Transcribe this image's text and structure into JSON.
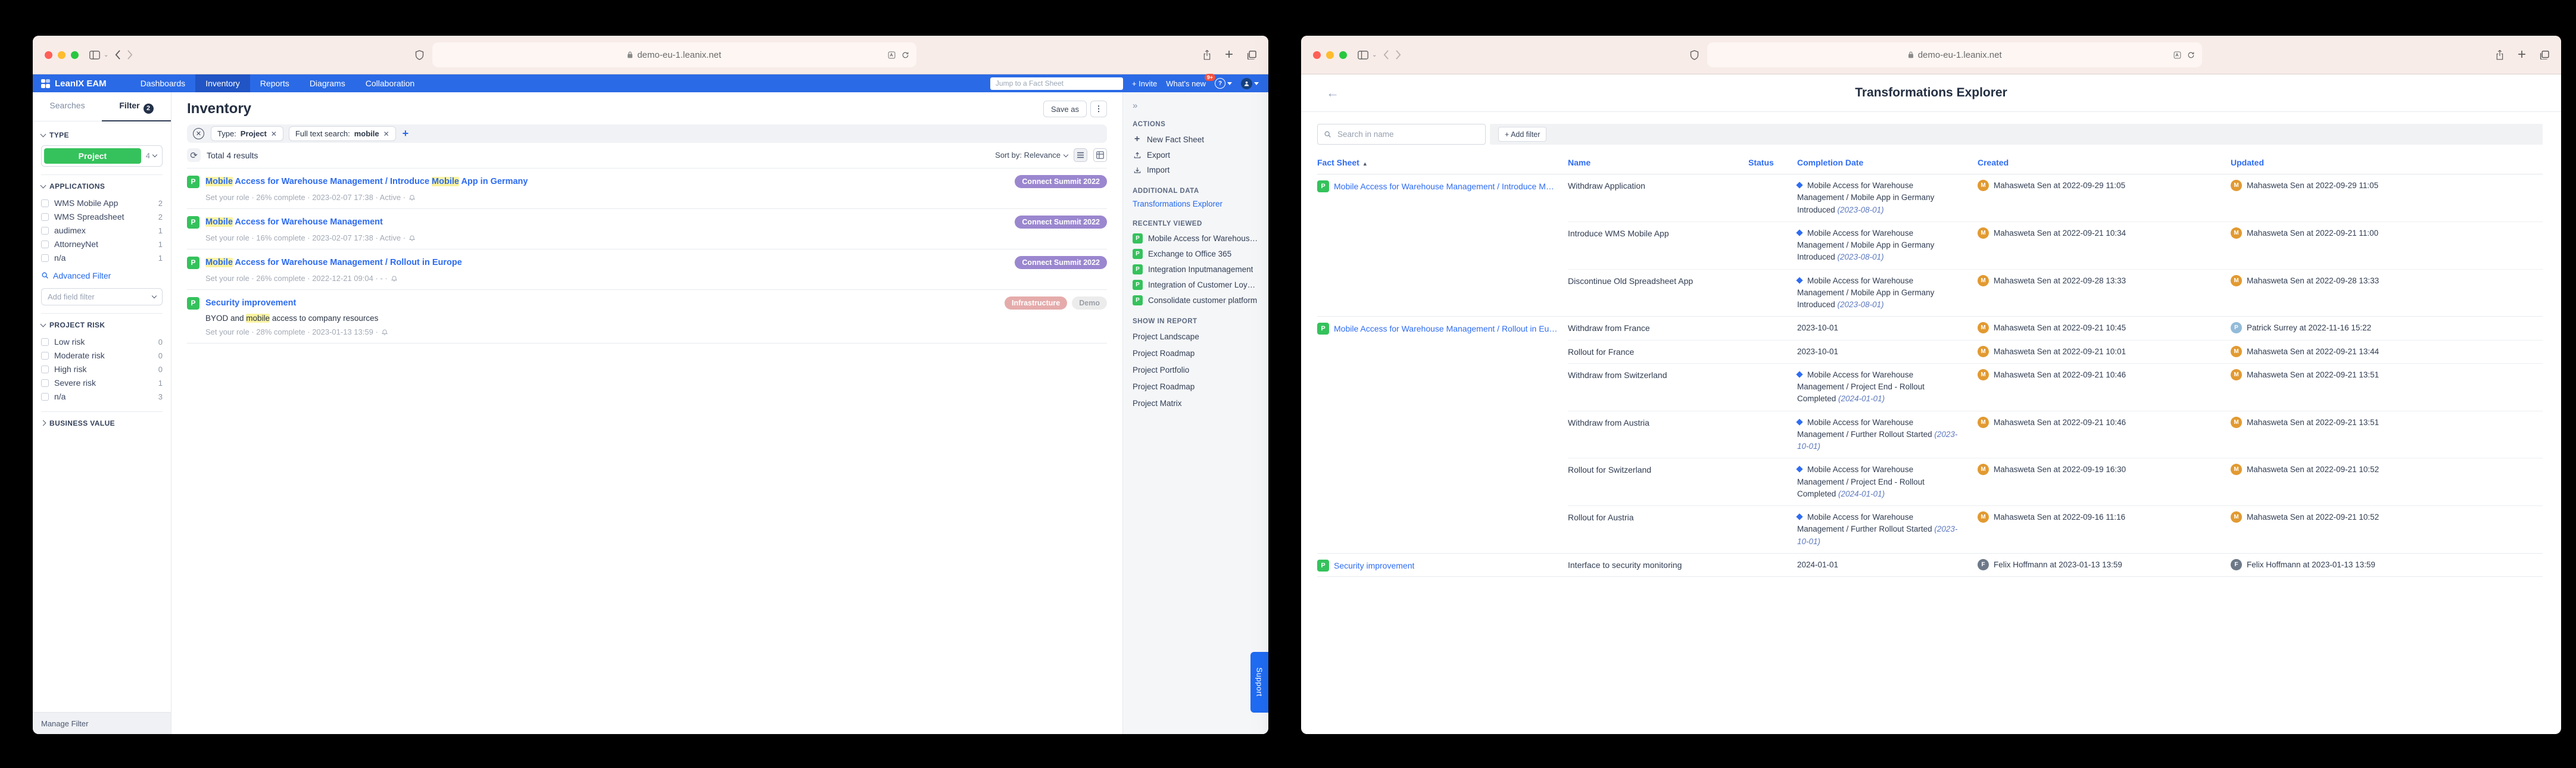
{
  "browser": {
    "url": "demo-eu-1.leanix.net"
  },
  "fact_sheet_badge": "P",
  "colors": {
    "navbar_blue": "#2b6ae6",
    "accent_blue": "#2e6cf3",
    "green": "#35c25c",
    "highlight_yellow": "#faf3a2",
    "tag_purple": "#9b87cf",
    "tag_pink": "#e5abab",
    "tag_gray": "#ececec"
  },
  "left": {
    "navbar": {
      "brand": "LeanIX EAM",
      "items": [
        {
          "label": "Dashboards",
          "active": false
        },
        {
          "label": "Inventory",
          "active": true
        },
        {
          "label": "Reports",
          "active": false
        },
        {
          "label": "Diagrams",
          "active": false
        },
        {
          "label": "Collaboration",
          "active": false
        }
      ],
      "search_placeholder": "Jump to a Fact Sheet",
      "invite": "+ Invite",
      "whats_new": "What's new",
      "whats_new_badge": "9+"
    },
    "sidebar": {
      "tabs": [
        {
          "label": "Searches",
          "badge": "",
          "active": false
        },
        {
          "label": "Filter",
          "badge": "2",
          "active": true
        }
      ],
      "type_section": {
        "title": "TYPE",
        "value": "Project",
        "count": "4"
      },
      "applications": {
        "title": "APPLICATIONS",
        "items": [
          {
            "label": "WMS Mobile App",
            "count": "2"
          },
          {
            "label": "WMS Spreadsheet",
            "count": "2"
          },
          {
            "label": "audimex",
            "count": "1"
          },
          {
            "label": "AttorneyNet",
            "count": "1"
          },
          {
            "label": "n/a",
            "count": "1"
          }
        ]
      },
      "advanced_filter": "Advanced Filter",
      "add_field_filter": "Add field filter",
      "project_risk": {
        "title": "PROJECT RISK",
        "items": [
          {
            "label": "Low risk",
            "count": "0"
          },
          {
            "label": "Moderate risk",
            "count": "0"
          },
          {
            "label": "High risk",
            "count": "0"
          },
          {
            "label": "Severe risk",
            "count": "1"
          },
          {
            "label": "n/a",
            "count": "3"
          }
        ]
      },
      "business_value": "BUSINESS VALUE",
      "footer": "Manage Filter"
    },
    "main": {
      "title": "Inventory",
      "save_as": "Save as",
      "filter_pills": [
        {
          "label": "Type:",
          "value": "Project"
        },
        {
          "label": "Full text search:",
          "value": "mobile"
        }
      ],
      "total": "Total 4 results",
      "sort": "Sort by: Relevance",
      "items": [
        {
          "title": [
            [
              "Mobile",
              1
            ],
            [
              " Access for Warehouse Management / Introduce ",
              0
            ],
            [
              "Mobile",
              1
            ],
            [
              " App in Germany",
              0
            ]
          ],
          "tags": [
            {
              "label": "Connect Summit 2022",
              "color": "purple"
            }
          ],
          "meta": "Set your role · 26% complete · 2023-02-07 17:38 · Active ·"
        },
        {
          "title": [
            [
              "Mobile",
              1
            ],
            [
              " Access for Warehouse Management",
              0
            ]
          ],
          "tags": [
            {
              "label": "Connect Summit 2022",
              "color": "purple"
            }
          ],
          "meta": "Set your role · 16% complete · 2023-02-07 17:38 · Active ·"
        },
        {
          "title": [
            [
              "Mobile",
              1
            ],
            [
              " Access for Warehouse Management / Rollout in Europe",
              0
            ]
          ],
          "tags": [
            {
              "label": "Connect Summit 2022",
              "color": "purple"
            }
          ],
          "meta": "Set your role · 26% complete · 2022-12-21 09:04 · - ·"
        },
        {
          "title": [
            [
              "Security improvement",
              0
            ]
          ],
          "tags": [
            {
              "label": "Infrastructure",
              "color": "pink"
            },
            {
              "label": "Demo",
              "color": "gray"
            }
          ],
          "desc": [
            [
              "BYOD and ",
              0
            ],
            [
              "mobile",
              1
            ],
            [
              " access to company resources",
              0
            ]
          ],
          "meta": "Set your role · 28% complete · 2023-01-13 13:59 ·"
        }
      ]
    },
    "panel": {
      "actions_title": "ACTIONS",
      "actions": [
        {
          "label": "New Fact Sheet",
          "icon": "plus"
        },
        {
          "label": "Export",
          "icon": "export"
        },
        {
          "label": "Import",
          "icon": "import"
        }
      ],
      "additional_title": "ADDITIONAL DATA",
      "additional_link": "Transformations Explorer",
      "recent_title": "RECENTLY VIEWED",
      "recent": [
        "Mobile Access for Warehouse M...",
        "Exchange to Office 365",
        "Integration Inputmanagement",
        "Integration of Customer Loyalt...",
        "Consolidate customer platform"
      ],
      "reports_title": "SHOW IN REPORT",
      "reports": [
        "Project Landscape",
        "Project Roadmap",
        "Project Portfolio",
        "Project Roadmap",
        "Project Matrix"
      ],
      "support": "Support"
    }
  },
  "right": {
    "title": "Transformations Explorer",
    "search_placeholder": "Search in name",
    "add_filter": "+ Add filter",
    "columns": [
      "Fact Sheet",
      "Name",
      "Status",
      "Completion Date",
      "Created",
      "Updated"
    ],
    "avatars": {
      "MS": {
        "initial": "M",
        "color": "#e29a31"
      },
      "PS": {
        "initial": "P",
        "color": "#93bbd8"
      },
      "FH": {
        "initial": "F",
        "color": "#6d7988"
      }
    },
    "groups": [
      {
        "fact_sheet": "Mobile Access for Warehouse Management / Introduce Mobile App...",
        "rows": [
          {
            "name": "Withdraw Application",
            "status": "",
            "completion": {
              "milestone": "Mobile Access for Warehouse Management / Mobile App in Germany Introduced",
              "date": "(2023-08-01)"
            },
            "created": {
              "a": "MS",
              "t": "Mahasweta Sen at 2022-09-29 11:05"
            },
            "updated": {
              "a": "MS",
              "t": "Mahasweta Sen at 2022-09-29 11:05"
            }
          },
          {
            "name": "Introduce WMS Mobile App",
            "status": "",
            "completion": {
              "milestone": "Mobile Access for Warehouse Management / Mobile App in Germany Introduced",
              "date": "(2023-08-01)"
            },
            "created": {
              "a": "MS",
              "t": "Mahasweta Sen at 2022-09-21 10:34"
            },
            "updated": {
              "a": "MS",
              "t": "Mahasweta Sen at 2022-09-21 11:00"
            }
          },
          {
            "name": "Discontinue Old Spreadsheet App",
            "status": "",
            "completion": {
              "milestone": "Mobile Access for Warehouse Management / Mobile App in Germany Introduced",
              "date": "(2023-08-01)"
            },
            "created": {
              "a": "MS",
              "t": "Mahasweta Sen at 2022-09-28 13:33"
            },
            "updated": {
              "a": "MS",
              "t": "Mahasweta Sen at 2022-09-28 13:33"
            }
          }
        ]
      },
      {
        "fact_sheet": "Mobile Access for Warehouse Management / Rollout in Europe",
        "rows": [
          {
            "name": "Withdraw from France",
            "status": "",
            "completion": {
              "text": "2023-10-01"
            },
            "created": {
              "a": "MS",
              "t": "Mahasweta Sen at 2022-09-21 10:45"
            },
            "updated": {
              "a": "PS",
              "t": "Patrick Surrey at 2022-11-16 15:22"
            }
          },
          {
            "name": "Rollout for France",
            "status": "",
            "completion": {
              "text": "2023-10-01"
            },
            "created": {
              "a": "MS",
              "t": "Mahasweta Sen at 2022-09-21 10:01"
            },
            "updated": {
              "a": "MS",
              "t": "Mahasweta Sen at 2022-09-21 13:44"
            }
          },
          {
            "name": "Withdraw from Switzerland",
            "status": "",
            "completion": {
              "milestone": "Mobile Access for Warehouse Management / Project End - Rollout Completed",
              "date": "(2024-01-01)"
            },
            "created": {
              "a": "MS",
              "t": "Mahasweta Sen at 2022-09-21 10:46"
            },
            "updated": {
              "a": "MS",
              "t": "Mahasweta Sen at 2022-09-21 13:51"
            }
          },
          {
            "name": "Withdraw from Austria",
            "status": "",
            "completion": {
              "milestone": "Mobile Access for Warehouse Management / Further Rollout Started",
              "date": "(2023-10-01)"
            },
            "created": {
              "a": "MS",
              "t": "Mahasweta Sen at 2022-09-21 10:46"
            },
            "updated": {
              "a": "MS",
              "t": "Mahasweta Sen at 2022-09-21 13:51"
            }
          },
          {
            "name": "Rollout for Switzerland",
            "status": "",
            "completion": {
              "milestone": "Mobile Access for Warehouse Management / Project End - Rollout Completed",
              "date": "(2024-01-01)"
            },
            "created": {
              "a": "MS",
              "t": "Mahasweta Sen at 2022-09-19 16:30"
            },
            "updated": {
              "a": "MS",
              "t": "Mahasweta Sen at 2022-09-21 10:52"
            }
          },
          {
            "name": "Rollout for Austria",
            "status": "",
            "completion": {
              "milestone": "Mobile Access for Warehouse Management / Further Rollout Started",
              "date": "(2023-10-01)"
            },
            "created": {
              "a": "MS",
              "t": "Mahasweta Sen at 2022-09-16 11:16"
            },
            "updated": {
              "a": "MS",
              "t": "Mahasweta Sen at 2022-09-21 10:52"
            }
          }
        ]
      },
      {
        "fact_sheet": "Security improvement",
        "rows": [
          {
            "name": "Interface to security monitoring",
            "status": "",
            "completion": {
              "text": "2024-01-01"
            },
            "created": {
              "a": "FH",
              "t": "Felix Hoffmann at 2023-01-13 13:59"
            },
            "updated": {
              "a": "FH",
              "t": "Felix Hoffmann at 2023-01-13 13:59"
            }
          }
        ]
      }
    ]
  }
}
